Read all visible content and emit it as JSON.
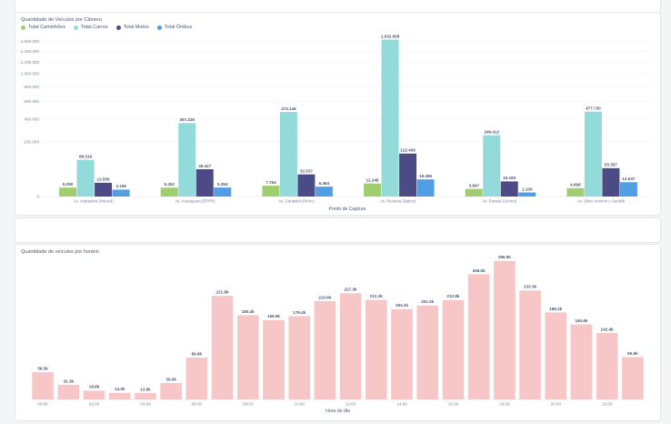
{
  "chart_data": [
    {
      "type": "bar",
      "title": "Quantidade de Veículos por Câmera",
      "xlabel": "Ponto de Captura",
      "ylabel": "",
      "scale": "sqrt",
      "ylim": [
        0,
        1700000
      ],
      "yticks": [
        0,
        200000,
        400000,
        600000,
        800000,
        1000000,
        1200000,
        1400000,
        1600000
      ],
      "ytick_labels": [
        "0",
        "200.000",
        "400.000",
        "600.000",
        "800.000",
        "1.000.000",
        "1.200.000",
        "1.400.000",
        "1.600.000"
      ],
      "legend_position": "top-left",
      "categories": [
        "Av. Andradina (Wizard)",
        "Av. Araraquara (EPPR)",
        "Av. Garibaldi (Pinho)",
        "Av. Panamá (Batinz)",
        "Av. Paraná (Centro)",
        "Av. Sílvio Amorim e Sardelli"
      ],
      "series": [
        {
          "name": "Total Caminhões",
          "color": "#a1cd71",
          "values": [
            5290,
            5262,
            7754,
            11248,
            3847,
            4696
          ],
          "labels": [
            "5.290",
            "5.262",
            "7.754",
            "11.248",
            "3.847",
            "4.696"
          ]
        },
        {
          "name": "Total Carros",
          "color": "#93dadb",
          "values": [
            89319,
            357226,
            474146,
            1632008,
            249412,
            477730
          ],
          "labels": [
            "89.319",
            "357.226",
            "474.146",
            "1.632.008",
            "249.412",
            "477.730"
          ]
        },
        {
          "name": "Total Motos",
          "color": "#4c4b85",
          "values": [
            12559,
            49427,
            32537,
            122406,
            15160,
            53357
          ],
          "labels": [
            "12.559",
            "49.427",
            "32.537",
            "122.406",
            "15.160",
            "53.357"
          ]
        },
        {
          "name": "Total Ônibus",
          "color": "#509ee3",
          "values": [
            3159,
            5364,
            6484,
            19485,
            1105,
            13537
          ],
          "labels": [
            "3.159",
            "5.364",
            "6.484",
            "19.485",
            "1.105",
            "13.537"
          ]
        }
      ]
    },
    {
      "type": "bar",
      "title": "Quantidade de veículos por horário",
      "xlabel": "Hora do dia",
      "ylabel": "",
      "ylim": [
        0,
        300000
      ],
      "color": "#f7c6c7",
      "x": [
        "00:00",
        "01:00",
        "02:00",
        "03:00",
        "04:00",
        "05:00",
        "06:00",
        "07:00",
        "08:00",
        "09:00",
        "10:00",
        "11:00",
        "12:00",
        "13:00",
        "14:00",
        "15:00",
        "16:00",
        "17:00",
        "18:00",
        "19:00",
        "20:00",
        "21:00",
        "22:00",
        "23:00"
      ],
      "x_tick_labels": [
        "00:00",
        "",
        "02:00",
        "",
        "04:00",
        "",
        "06:00",
        "",
        "08:00",
        "",
        "10:00",
        "",
        "12:00",
        "",
        "14:00",
        "",
        "16:00",
        "",
        "18:00",
        "",
        "20:00",
        "",
        "22:00",
        ""
      ],
      "values": [
        58300,
        31300,
        18800,
        14000,
        13900,
        35000,
        89800,
        221800,
        180400,
        169900,
        178400,
        210600,
        227300,
        213300,
        193200,
        201000,
        212800,
        268000,
        296500,
        233300,
        186300,
        160600,
        142400,
        90800
      ],
      "labels": [
        "58.3k",
        "31.3k",
        "18.8k",
        "14.0k",
        "13.9k",
        "35.0k",
        "89.8k",
        "221.8k",
        "180.4k",
        "169.9k",
        "178.4k",
        "210.6k",
        "227.3k",
        "213.3k",
        "193.2k",
        "201.0k",
        "212.8k",
        "268.0k",
        "296.5k",
        "233.3k",
        "186.3k",
        "160.6k",
        "142.4k",
        "90.8k"
      ]
    }
  ]
}
